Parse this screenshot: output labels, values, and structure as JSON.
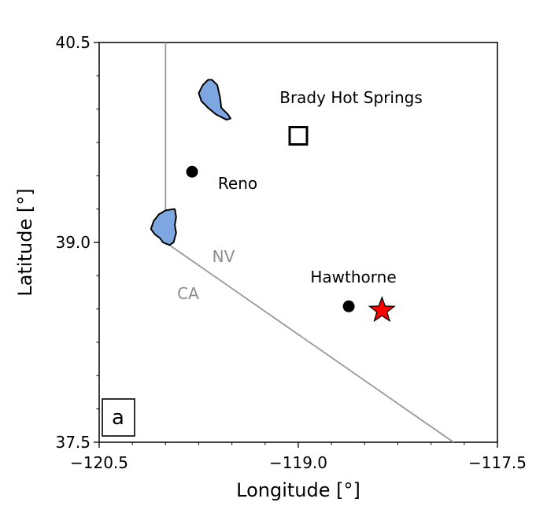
{
  "map": {
    "panel_label": "a",
    "xlabel": "Longitude [°]",
    "ylabel": "Latitude [°]",
    "xlim": [
      -120.5,
      -117.5
    ],
    "ylim": [
      37.5,
      40.5
    ],
    "xticks": [
      {
        "value": -120.5,
        "label": "−120.5"
      },
      {
        "value": -119.0,
        "label": "−119.0"
      },
      {
        "value": -117.5,
        "label": "−117.5"
      }
    ],
    "yticks": [
      {
        "value": 40.5,
        "label": "40.5"
      },
      {
        "value": 39.0,
        "label": "39.0"
      },
      {
        "value": 37.5,
        "label": "37.5"
      }
    ],
    "minor_step": 0.25,
    "state_labels": {
      "nv": "NV",
      "ca": "CA"
    },
    "state_label_color": "#8c8c8c",
    "border_color": "#999999",
    "lake_fill": "#7ea6e0",
    "star_color": "#ff0000",
    "places": [
      {
        "id": "brady-hot-springs",
        "name": "Brady Hot Springs",
        "lon": -119.0,
        "lat": 39.8,
        "marker": "open-square"
      },
      {
        "id": "reno",
        "name": "Reno",
        "lon": -119.8,
        "lat": 39.53,
        "marker": "filled-circle"
      },
      {
        "id": "hawthorne",
        "name": "Hawthorne",
        "lon": -118.62,
        "lat": 38.52,
        "marker": "filled-circle"
      },
      {
        "id": "event",
        "name": "",
        "lon": -118.37,
        "lat": 38.49,
        "marker": "red-star"
      }
    ],
    "state_border": [
      {
        "lon": -120.0,
        "lat": 40.5
      },
      {
        "lon": -120.0,
        "lat": 39.0
      },
      {
        "lon": -117.83,
        "lat": 37.5
      }
    ],
    "lakes": [
      {
        "name": "pyramid-lake",
        "outline": [
          [
            -119.65,
            40.22
          ],
          [
            -119.61,
            40.18
          ],
          [
            -119.59,
            40.09
          ],
          [
            -119.58,
            40.01
          ],
          [
            -119.53,
            39.96
          ],
          [
            -119.51,
            39.93
          ],
          [
            -119.54,
            39.92
          ],
          [
            -119.62,
            39.96
          ],
          [
            -119.68,
            40.01
          ],
          [
            -119.73,
            40.06
          ],
          [
            -119.75,
            40.12
          ],
          [
            -119.72,
            40.18
          ],
          [
            -119.68,
            40.22
          ]
        ]
      },
      {
        "name": "lake-tahoe",
        "outline": [
          [
            -119.94,
            39.25
          ],
          [
            -120.0,
            39.24
          ],
          [
            -120.05,
            39.21
          ],
          [
            -120.09,
            39.16
          ],
          [
            -120.11,
            39.1
          ],
          [
            -120.08,
            39.06
          ],
          [
            -120.04,
            39.03
          ],
          [
            -120.02,
            39.0
          ],
          [
            -119.97,
            38.98
          ],
          [
            -119.94,
            39.0
          ],
          [
            -119.92,
            39.07
          ],
          [
            -119.93,
            39.13
          ],
          [
            -119.92,
            39.19
          ],
          [
            -119.93,
            39.25
          ]
        ]
      }
    ]
  }
}
